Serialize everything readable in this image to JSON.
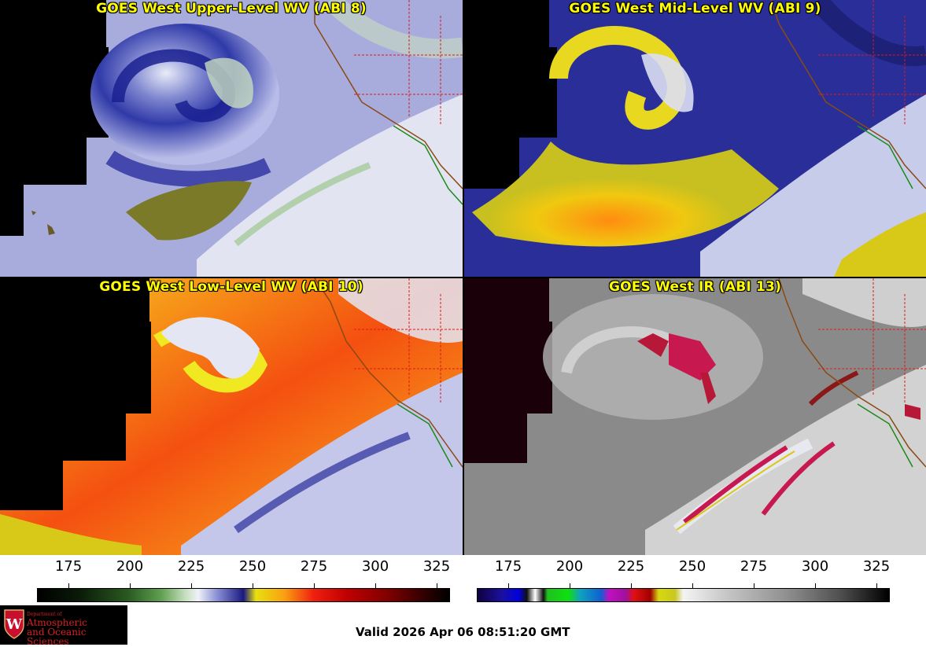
{
  "panels": [
    {
      "title": "GOES West Upper-Level WV (ABI 8)"
    },
    {
      "title": "GOES West Mid-Level WV (ABI 9)"
    },
    {
      "title": "GOES West Low-Level WV (ABI 10)"
    },
    {
      "title": "GOES West IR (ABI 13)"
    }
  ],
  "colorbars": [
    {
      "ticks": [
        "175",
        "200",
        "225",
        "250",
        "275",
        "300",
        "325"
      ]
    },
    {
      "ticks": [
        "175",
        "200",
        "225",
        "250",
        "275",
        "300",
        "325"
      ]
    }
  ],
  "logo": {
    "dept": "Department of",
    "line1": "Atmospheric",
    "line2": "and Oceanic Sciences"
  },
  "valid_time": "Valid 2026 Apr 06 08:51:20 GMT",
  "colors": {
    "title_yellow": "#ffff00",
    "logo_red": "#d62020"
  }
}
